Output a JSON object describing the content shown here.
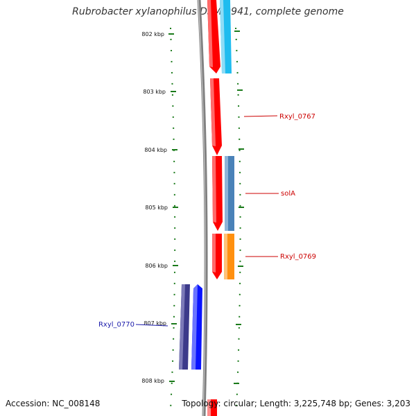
{
  "title": "Rubrobacter xylanophilus DSM 9941, complete genome",
  "footer": {
    "accession_label": "Accession: NC_008148",
    "stats_label": "Topology: circular; Length: 3,225,748 bp; Genes: 3,203"
  },
  "axis": {
    "unit": "kbp",
    "ticks": [
      "802 kbp",
      "803 kbp",
      "804 kbp",
      "805 kbp",
      "806 kbp",
      "807 kbp",
      "808 kbp"
    ]
  },
  "labels": {
    "gene_0767": "Rxyl_0767",
    "gene_solA": "solA",
    "gene_0769": "Rxyl_0769",
    "gene_0770": "Rxyl_0770"
  },
  "colors": {
    "red": "#ff0000",
    "cyan": "#1fbcef",
    "steel_blue": "#4a82b8",
    "orange": "#ff9010",
    "navy": "#3c3a8a",
    "blue": "#0a14ff",
    "backbone": "#808080",
    "tick_green": "#1a7a1a",
    "label_red": "#cc0000",
    "label_blue": "#1a1aaa"
  }
}
